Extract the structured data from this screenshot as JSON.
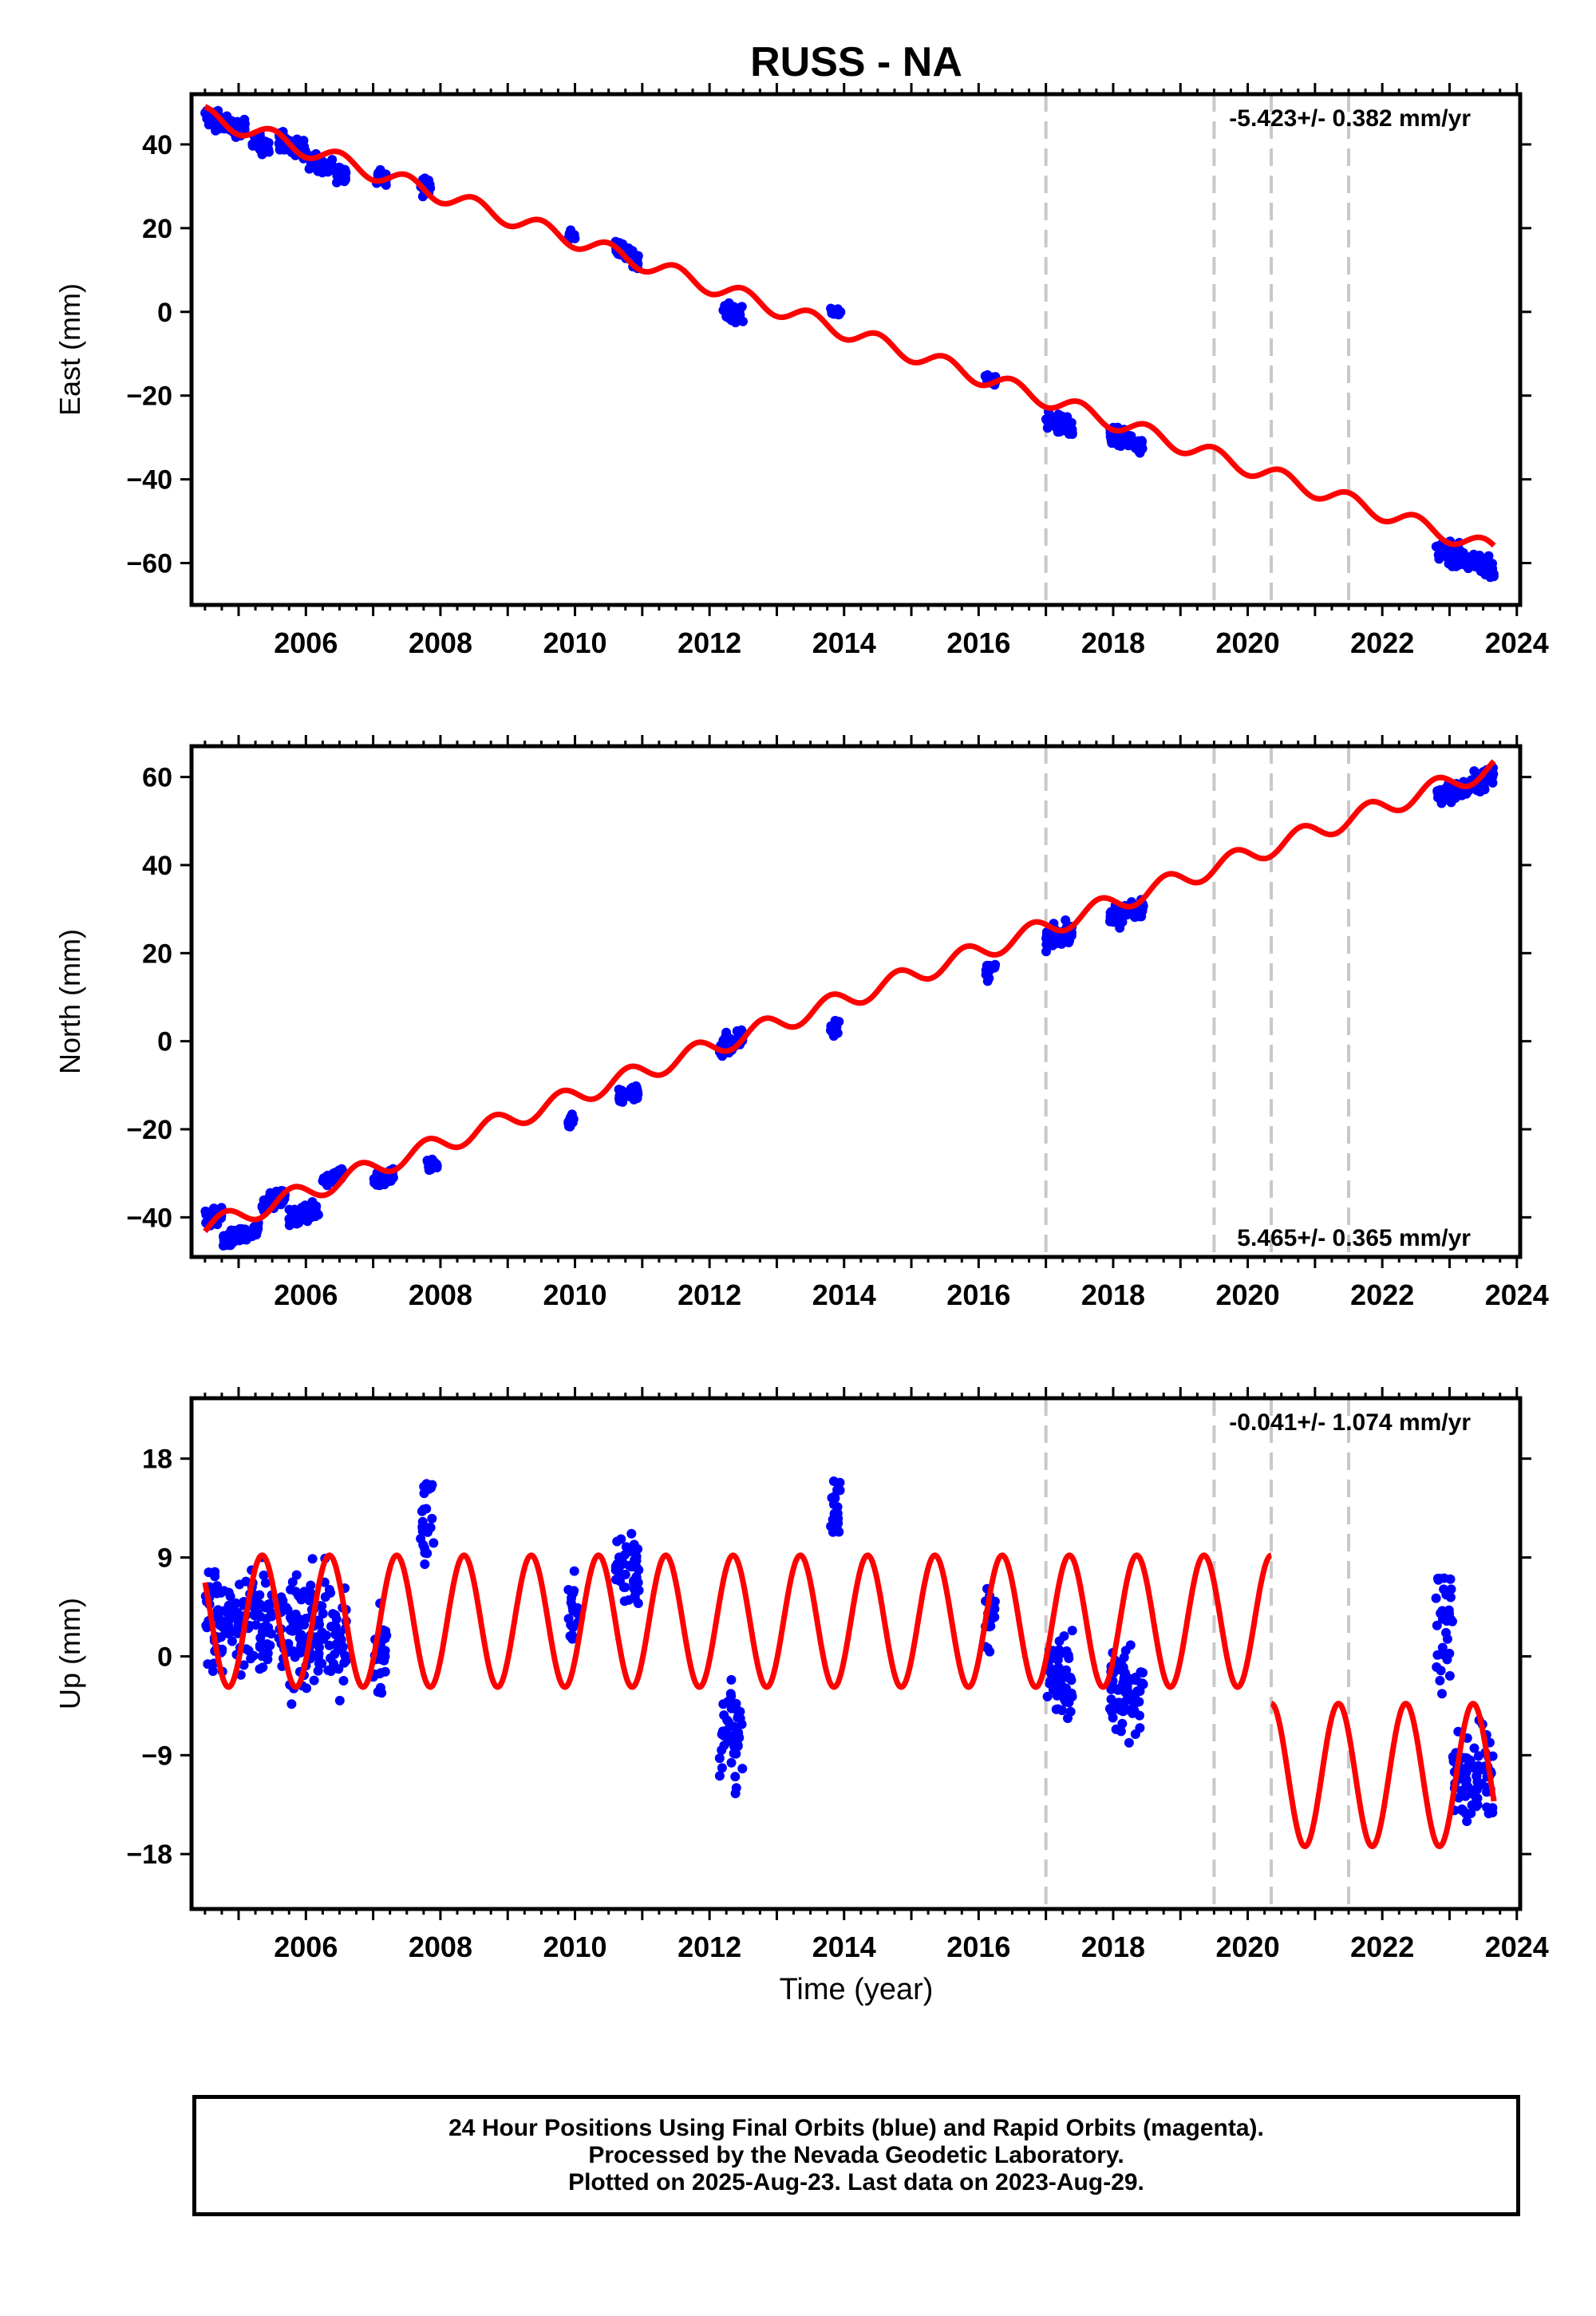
{
  "title": "RUSS - NA",
  "xlabel": "Time (year)",
  "footer": {
    "line1": "24 Hour Positions Using Final Orbits (blue) and Rapid Orbits (magenta).",
    "line2": "Processed by the Nevada Geodetic Laboratory.",
    "line3": "Plotted on 2025-Aug-23. Last data on 2023-Aug-29."
  },
  "colors": {
    "data": "#0000ff",
    "model": "#ff0000",
    "steps": "#c8c8c8",
    "axis": "#000000"
  },
  "chart_data": [
    {
      "type": "scatter",
      "component": "east",
      "ylabel": "East (mm)",
      "rate_label": "-5.423+/- 0.382 mm/yr",
      "xlim": [
        2004.3,
        2024.05
      ],
      "ylim": [
        -70,
        52
      ],
      "yticks": [
        -60,
        -40,
        -20,
        0,
        20,
        40
      ],
      "xticks": [
        2006,
        2008,
        2010,
        2012,
        2014,
        2016,
        2018,
        2020,
        2022,
        2024
      ],
      "step_epochs": [
        2017.0,
        2019.5,
        2020.35,
        2021.5
      ],
      "model": {
        "trend_at_2004_5": 47.0,
        "rate": -5.423,
        "annual_amplitude": 2.0,
        "annual_phase_year": 0.25
      },
      "clusters": [
        {
          "start": 2004.5,
          "end": 2005.1,
          "mean": 45,
          "scatter": 2
        },
        {
          "start": 2005.2,
          "end": 2005.45,
          "mean": 40,
          "scatter": 2
        },
        {
          "start": 2005.6,
          "end": 2006.0,
          "mean": 40,
          "scatter": 2
        },
        {
          "start": 2006.05,
          "end": 2006.4,
          "mean": 35,
          "scatter": 2
        },
        {
          "start": 2006.45,
          "end": 2006.6,
          "mean": 33,
          "scatter": 2
        },
        {
          "start": 2007.05,
          "end": 2007.2,
          "mean": 32,
          "scatter": 2
        },
        {
          "start": 2007.7,
          "end": 2007.85,
          "mean": 30,
          "scatter": 2.5
        },
        {
          "start": 2009.9,
          "end": 2010.0,
          "mean": 18,
          "scatter": 1
        },
        {
          "start": 2010.6,
          "end": 2010.95,
          "mean": 14,
          "scatter": 2
        },
        {
          "start": 2012.2,
          "end": 2012.5,
          "mean": 0,
          "scatter": 2
        },
        {
          "start": 2013.8,
          "end": 2013.95,
          "mean": 0,
          "scatter": 0.8
        },
        {
          "start": 2016.1,
          "end": 2016.25,
          "mean": -16,
          "scatter": 1
        },
        {
          "start": 2017.0,
          "end": 2017.4,
          "mean": -27,
          "scatter": 2
        },
        {
          "start": 2017.95,
          "end": 2018.45,
          "mean": -31,
          "scatter": 2
        },
        {
          "start": 2022.8,
          "end": 2023.66,
          "mean": -59,
          "scatter": 2.5
        }
      ]
    },
    {
      "type": "scatter",
      "component": "north",
      "ylabel": "North (mm)",
      "rate_label": "5.465+/- 0.365 mm/yr",
      "xlim": [
        2004.3,
        2024.05
      ],
      "ylim": [
        -49,
        67
      ],
      "yticks": [
        -40,
        -20,
        0,
        20,
        40,
        60
      ],
      "xticks": [
        2006,
        2008,
        2010,
        2012,
        2014,
        2016,
        2018,
        2020,
        2022,
        2024
      ],
      "step_epochs": [
        2017.0,
        2019.5,
        2020.35,
        2021.5
      ],
      "model": {
        "trend_at_2004_5": -42.5,
        "rate": 5.465,
        "annual_amplitude": 2.2,
        "annual_phase_year": 0.55
      },
      "clusters": [
        {
          "start": 2004.5,
          "end": 2004.75,
          "mean": -40,
          "scatter": 1.5
        },
        {
          "start": 2004.75,
          "end": 2005.3,
          "mean": -44,
          "scatter": 1.5
        },
        {
          "start": 2005.35,
          "end": 2005.7,
          "mean": -36,
          "scatter": 1.5
        },
        {
          "start": 2005.75,
          "end": 2006.2,
          "mean": -39,
          "scatter": 2
        },
        {
          "start": 2006.25,
          "end": 2006.55,
          "mean": -31,
          "scatter": 1.5
        },
        {
          "start": 2007.0,
          "end": 2007.3,
          "mean": -31,
          "scatter": 1.5
        },
        {
          "start": 2007.8,
          "end": 2007.95,
          "mean": -28,
          "scatter": 1.5
        },
        {
          "start": 2009.9,
          "end": 2010.0,
          "mean": -18,
          "scatter": 1.5
        },
        {
          "start": 2010.65,
          "end": 2010.95,
          "mean": -12,
          "scatter": 1.5
        },
        {
          "start": 2012.15,
          "end": 2012.5,
          "mean": 0,
          "scatter": 2.5
        },
        {
          "start": 2013.8,
          "end": 2013.95,
          "mean": 3,
          "scatter": 1.5
        },
        {
          "start": 2016.1,
          "end": 2016.25,
          "mean": 16,
          "scatter": 1.5
        },
        {
          "start": 2017.0,
          "end": 2017.4,
          "mean": 24,
          "scatter": 2
        },
        {
          "start": 2017.95,
          "end": 2018.45,
          "mean": 29,
          "scatter": 2
        },
        {
          "start": 2022.8,
          "end": 2023.66,
          "mean": 58,
          "scatter": 2
        }
      ]
    },
    {
      "type": "scatter",
      "component": "up",
      "ylabel": "Up (mm)",
      "rate_label": "-0.041+/- 1.074 mm/yr",
      "xlim": [
        2004.3,
        2024.05
      ],
      "ylim": [
        -23,
        23.5
      ],
      "yticks": [
        -18,
        -9,
        0,
        9,
        18
      ],
      "xticks": [
        2006,
        2008,
        2010,
        2012,
        2014,
        2016,
        2018,
        2020,
        2022,
        2024
      ],
      "step_epochs": [
        2017.0,
        2019.5,
        2020.35,
        2021.5
      ],
      "model": {
        "segments": [
          {
            "start": 2004.5,
            "end": 2020.35,
            "offset": 3.2,
            "amplitude": 6.0
          },
          {
            "start": 2020.35,
            "end": 2023.66,
            "offset": -10.8,
            "amplitude": 6.5
          }
        ]
      },
      "clusters": [
        {
          "start": 2004.5,
          "end": 2005.5,
          "mean": 3,
          "scatter": 4.5
        },
        {
          "start": 2005.6,
          "end": 2006.6,
          "mean": 2,
          "scatter": 4.5
        },
        {
          "start": 2007.0,
          "end": 2007.2,
          "mean": 1,
          "scatter": 3.5
        },
        {
          "start": 2007.7,
          "end": 2007.9,
          "mean": 12,
          "scatter": 4
        },
        {
          "start": 2009.9,
          "end": 2010.05,
          "mean": 4,
          "scatter": 3.5
        },
        {
          "start": 2010.6,
          "end": 2010.95,
          "mean": 8,
          "scatter": 3.5
        },
        {
          "start": 2012.15,
          "end": 2012.5,
          "mean": -7,
          "scatter": 4
        },
        {
          "start": 2013.8,
          "end": 2013.95,
          "mean": 13,
          "scatter": 3
        },
        {
          "start": 2016.1,
          "end": 2016.25,
          "mean": 4,
          "scatter": 3
        },
        {
          "start": 2017.0,
          "end": 2017.4,
          "mean": -2,
          "scatter": 3.5
        },
        {
          "start": 2017.95,
          "end": 2018.45,
          "mean": -3,
          "scatter": 4
        },
        {
          "start": 2022.8,
          "end": 2023.05,
          "mean": 3,
          "scatter": 4.5
        },
        {
          "start": 2023.05,
          "end": 2023.66,
          "mean": -11,
          "scatter": 3.5
        }
      ]
    }
  ]
}
